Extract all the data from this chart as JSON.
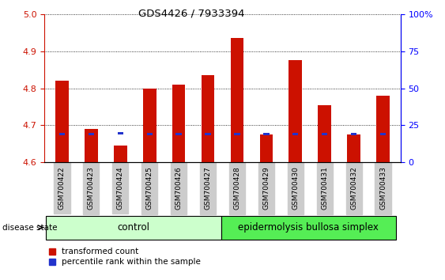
{
  "title": "GDS4426 / 7933394",
  "samples": [
    "GSM700422",
    "GSM700423",
    "GSM700424",
    "GSM700425",
    "GSM700426",
    "GSM700427",
    "GSM700428",
    "GSM700429",
    "GSM700430",
    "GSM700431",
    "GSM700432",
    "GSM700433"
  ],
  "transformed_count": [
    4.82,
    4.69,
    4.645,
    4.8,
    4.81,
    4.835,
    4.935,
    4.675,
    4.875,
    4.755,
    4.675,
    4.78
  ],
  "blue_bar_center": [
    4.676,
    4.676,
    4.678,
    4.676,
    4.676,
    4.676,
    4.676,
    4.676,
    4.676,
    4.676,
    4.676,
    4.676
  ],
  "blue_bar_height": 0.006,
  "ylim": [
    4.6,
    5.0
  ],
  "y_ticks_left": [
    4.6,
    4.7,
    4.8,
    4.9,
    5.0
  ],
  "y_ticks_right_labels": [
    "0",
    "25",
    "50",
    "75",
    "100%"
  ],
  "y_ticks_right_pos": [
    4.6,
    4.7,
    4.8,
    4.9,
    5.0
  ],
  "bar_base": 4.6,
  "red_color": "#cc1100",
  "blue_color": "#2233cc",
  "control_label": "control",
  "disease_label": "epidermolysis bullosa simplex",
  "disease_state_label": "disease state",
  "legend_red": "transformed count",
  "legend_blue": "percentile rank within the sample",
  "control_bg": "#ccffcc",
  "disease_bg": "#55ee55",
  "tick_bg": "#cccccc",
  "bar_width": 0.45,
  "blue_bar_width": 0.2,
  "n_control": 6,
  "n_disease": 6
}
